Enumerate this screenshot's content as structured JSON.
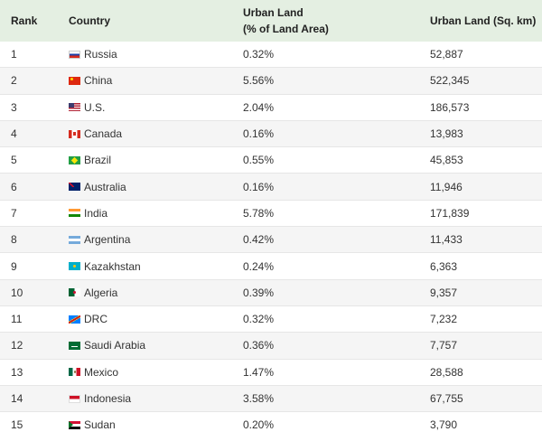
{
  "table": {
    "headers": {
      "rank": "Rank",
      "country": "Country",
      "urban_pct_line1": "Urban Land",
      "urban_pct_line2": "(% of Land Area)",
      "urban_sqkm": "Urban Land (Sq. km)"
    },
    "rows": [
      {
        "rank": "1",
        "flag": "ru",
        "country": "Russia",
        "pct": "0.32%",
        "sqkm": "52,887"
      },
      {
        "rank": "2",
        "flag": "cn",
        "country": "China",
        "pct": "5.56%",
        "sqkm": "522,345"
      },
      {
        "rank": "3",
        "flag": "us",
        "country": "U.S.",
        "pct": "2.04%",
        "sqkm": "186,573"
      },
      {
        "rank": "4",
        "flag": "ca",
        "country": "Canada",
        "pct": "0.16%",
        "sqkm": "13,983"
      },
      {
        "rank": "5",
        "flag": "br",
        "country": "Brazil",
        "pct": "0.55%",
        "sqkm": "45,853"
      },
      {
        "rank": "6",
        "flag": "au",
        "country": "Australia",
        "pct": "0.16%",
        "sqkm": "11,946"
      },
      {
        "rank": "7",
        "flag": "in",
        "country": "India",
        "pct": "5.78%",
        "sqkm": "171,839"
      },
      {
        "rank": "8",
        "flag": "ar",
        "country": "Argentina",
        "pct": "0.42%",
        "sqkm": "11,433"
      },
      {
        "rank": "9",
        "flag": "kz",
        "country": "Kazakhstan",
        "pct": "0.24%",
        "sqkm": "6,363"
      },
      {
        "rank": "10",
        "flag": "dz",
        "country": "Algeria",
        "pct": "0.39%",
        "sqkm": "9,357"
      },
      {
        "rank": "11",
        "flag": "cd",
        "country": "DRC",
        "pct": "0.32%",
        "sqkm": "7,232"
      },
      {
        "rank": "12",
        "flag": "sa",
        "country": "Saudi Arabia",
        "pct": "0.36%",
        "sqkm": "7,757"
      },
      {
        "rank": "13",
        "flag": "mx",
        "country": "Mexico",
        "pct": "1.47%",
        "sqkm": "28,588"
      },
      {
        "rank": "14",
        "flag": "id",
        "country": "Indonesia",
        "pct": "3.58%",
        "sqkm": "67,755"
      },
      {
        "rank": "15",
        "flag": "sd",
        "country": "Sudan",
        "pct": "0.20%",
        "sqkm": "3,790"
      }
    ]
  },
  "colors": {
    "header_bg": "#e4efe2",
    "stripe_bg": "#f5f5f5"
  }
}
